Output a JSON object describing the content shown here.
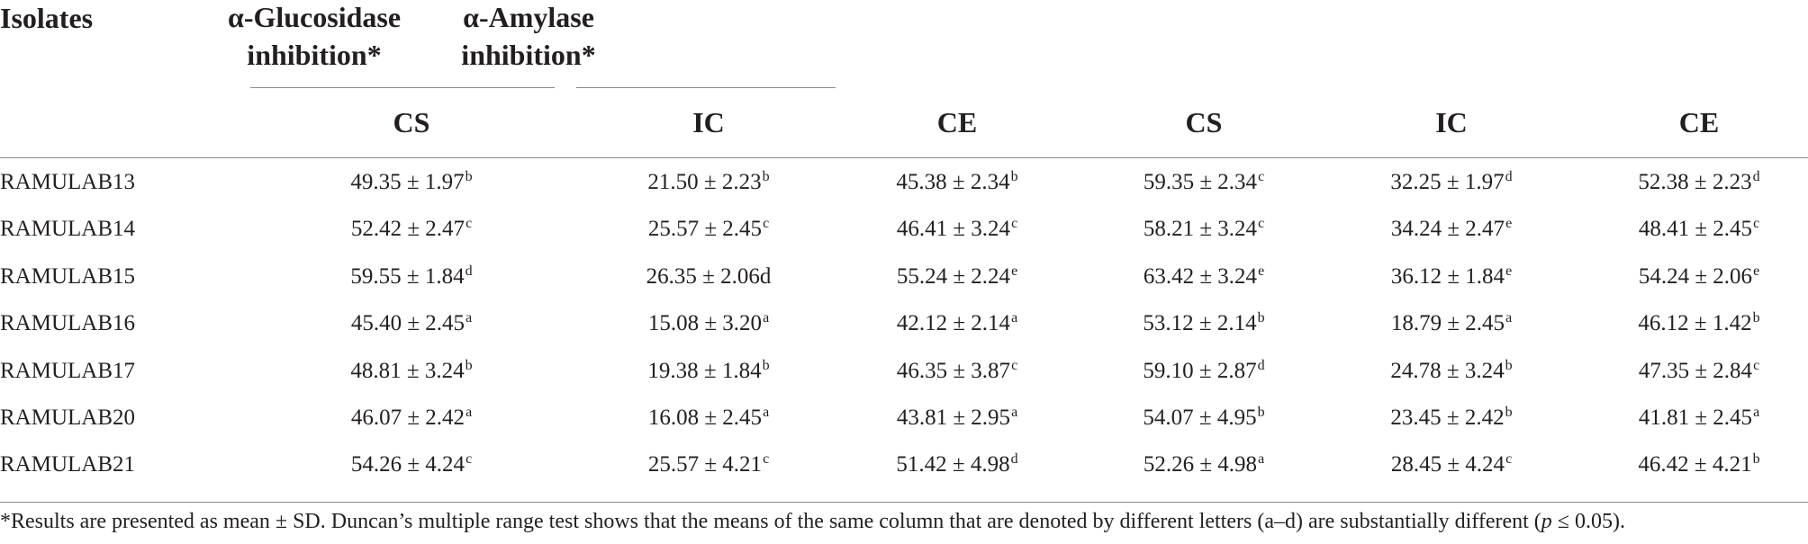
{
  "header": {
    "isolates": "Isolates",
    "group1": [
      "α-Glucosidase",
      "inhibition*"
    ],
    "group2": [
      "α-Amylase",
      "inhibition*"
    ],
    "subcolumns": [
      "CS",
      "IC",
      "CE",
      "CS",
      "IC",
      "CE"
    ]
  },
  "rows": [
    {
      "name": "RAMULAB13",
      "cells": [
        [
          "49.35 ± 1.97",
          "b"
        ],
        [
          "21.50 ± 2.23",
          "b"
        ],
        [
          "45.38 ± 2.34",
          "b"
        ],
        [
          "59.35 ± 2.34",
          "c"
        ],
        [
          "32.25 ± 1.97",
          "d"
        ],
        [
          "52.38 ± 2.23",
          "d"
        ]
      ]
    },
    {
      "name": "RAMULAB14",
      "cells": [
        [
          "52.42 ± 2.47",
          "c"
        ],
        [
          "25.57 ± 2.45",
          "c"
        ],
        [
          "46.41 ± 3.24",
          "c"
        ],
        [
          "58.21 ± 3.24",
          "c"
        ],
        [
          "34.24 ± 2.47",
          "e"
        ],
        [
          "48.41 ± 2.45",
          "c"
        ]
      ]
    },
    {
      "name": "RAMULAB15",
      "cells": [
        [
          "59.55 ± 1.84",
          "d"
        ],
        [
          "26.35 ± 2.06d",
          ""
        ],
        [
          "55.24 ± 2.24",
          "e"
        ],
        [
          "63.42 ± 3.24",
          "e"
        ],
        [
          "36.12 ± 1.84",
          "e"
        ],
        [
          "54.24 ± 2.06",
          "e"
        ]
      ]
    },
    {
      "name": "RAMULAB16",
      "cells": [
        [
          "45.40 ± 2.45",
          "a"
        ],
        [
          "15.08 ± 3.20",
          "a"
        ],
        [
          "42.12 ± 2.14",
          "a"
        ],
        [
          "53.12 ± 2.14",
          "b"
        ],
        [
          "18.79 ± 2.45",
          "a"
        ],
        [
          "46.12 ± 1.42",
          "b"
        ]
      ]
    },
    {
      "name": "RAMULAB17",
      "cells": [
        [
          "48.81 ± 3.24",
          "b"
        ],
        [
          "19.38 ± 1.84",
          "b"
        ],
        [
          "46.35 ± 3.87",
          "c"
        ],
        [
          "59.10 ± 2.87",
          "d"
        ],
        [
          "24.78 ± 3.24",
          "b"
        ],
        [
          "47.35 ± 2.84",
          "c"
        ]
      ]
    },
    {
      "name": "RAMULAB20",
      "cells": [
        [
          "46.07 ± 2.42",
          "a"
        ],
        [
          "16.08 ± 2.45",
          "a"
        ],
        [
          "43.81 ± 2.95",
          "a"
        ],
        [
          "54.07 ± 4.95",
          "b"
        ],
        [
          "23.45 ± 2.42",
          "b"
        ],
        [
          "41.81 ± 2.45",
          "a"
        ]
      ]
    },
    {
      "name": "RAMULAB21",
      "cells": [
        [
          "54.26 ± 4.24",
          "c"
        ],
        [
          "25.57 ± 4.21",
          "c"
        ],
        [
          "51.42 ± 4.98",
          "d"
        ],
        [
          "52.26 ± 4.98",
          "a"
        ],
        [
          "28.45 ± 4.24",
          "c"
        ],
        [
          "46.42 ± 4.21",
          "b"
        ]
      ]
    }
  ],
  "footnote": {
    "pre": "*Results are presented as mean ± SD. Duncan’s multiple range test shows that the means of the same column that are denoted by different letters (a–d) are substantially different (",
    "p": "p",
    "post": " ≤ 0.05)."
  }
}
